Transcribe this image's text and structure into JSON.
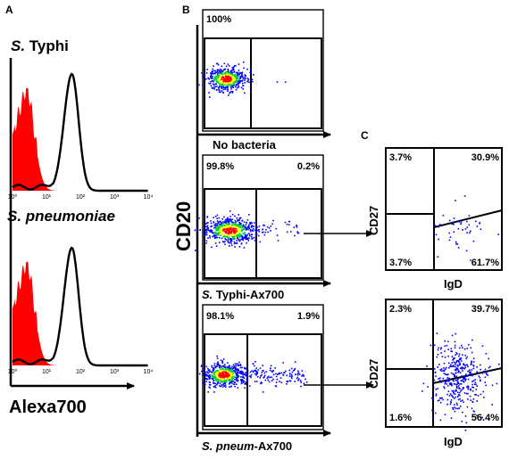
{
  "panel_letters": [
    "A",
    "B",
    "C"
  ],
  "panel_a": {
    "xlabel": "Alexa700",
    "x_tick_labels": [
      "10⁰",
      "10¹",
      "10²",
      "10³",
      "10⁴"
    ],
    "filled_color": "#ff0000",
    "line_color": "#000000",
    "histograms": [
      {
        "title_italic": "S.",
        "title_rest": " Typhi",
        "control_peak_log10": 0.4,
        "stained_peak_log10": 1.75
      },
      {
        "title_italic": "S. pneumoniae",
        "title_rest": "",
        "control_peak_log10": 0.4,
        "stained_peak_log10": 1.75
      }
    ]
  },
  "panel_b": {
    "ylabel": "CD20",
    "plots": [
      {
        "condition_italic": "",
        "condition_rest": "No bacteria",
        "q_left": "100%",
        "q_right": ""
      },
      {
        "condition_italic": "S.",
        "condition_rest": " Typhi-Ax700",
        "q_left": "99.8%",
        "q_right": "0.2%"
      },
      {
        "condition_italic": "S. pneum",
        "condition_rest": "-Ax700",
        "q_left": "98.1%",
        "q_right": "1.9%"
      }
    ]
  },
  "panel_c": {
    "xlabel": "IgD",
    "ylabel": "CD27",
    "plots": [
      {
        "source": "S. Typhi-Ax700",
        "q_ul": "3.7%",
        "q_ur": "30.9%",
        "q_ll": "3.7%",
        "q_lr": "61.7%",
        "n_events": 45
      },
      {
        "source": "S. pneum-Ax700",
        "q_ul": "2.3%",
        "q_ur": "39.7%",
        "q_ll": "1.6%",
        "q_lr": "56.4%",
        "n_events": 380
      }
    ]
  },
  "colors": {
    "density_high": "#ff0000",
    "density_mid": "#ffff00",
    "density_low": "#00cc33",
    "events": "#0000ff"
  },
  "chart_data": [
    {
      "type": "area",
      "panel": "A",
      "title": "S. Typhi",
      "xlabel": "Alexa700",
      "x_scale": "log",
      "xlim": [
        1,
        10000
      ],
      "series": [
        {
          "style": "filled red",
          "peak_x": 2.5
        },
        {
          "style": "black line",
          "peak_x": 56
        }
      ]
    },
    {
      "type": "area",
      "panel": "A",
      "title": "S. pneumoniae",
      "xlabel": "Alexa700",
      "x_scale": "log",
      "xlim": [
        1,
        10000
      ],
      "series": [
        {
          "style": "filled red",
          "peak_x": 2.5
        },
        {
          "style": "black line",
          "peak_x": 56
        }
      ]
    },
    {
      "type": "scatter",
      "panel": "B",
      "ylabel": "CD20",
      "xlabel": "No bacteria",
      "gates": {
        "left": "100%"
      }
    },
    {
      "type": "scatter",
      "panel": "B",
      "ylabel": "CD20",
      "xlabel": "S. Typhi-Ax700",
      "gates": {
        "left": "99.8%",
        "right": "0.2%"
      }
    },
    {
      "type": "scatter",
      "panel": "B",
      "ylabel": "CD20",
      "xlabel": "S. pneum-Ax700",
      "gates": {
        "left": "98.1%",
        "right": "1.9%"
      }
    },
    {
      "type": "scatter",
      "panel": "C",
      "xlabel": "IgD",
      "ylabel": "CD27",
      "quadrants": {
        "upper_left": "3.7%",
        "upper_right": "30.9%",
        "lower_left": "3.7%",
        "lower_right": "61.7%"
      }
    },
    {
      "type": "scatter",
      "panel": "C",
      "xlabel": "IgD",
      "ylabel": "CD27",
      "quadrants": {
        "upper_left": "2.3%",
        "upper_right": "39.7%",
        "lower_left": "1.6%",
        "lower_right": "56.4%"
      }
    }
  ]
}
